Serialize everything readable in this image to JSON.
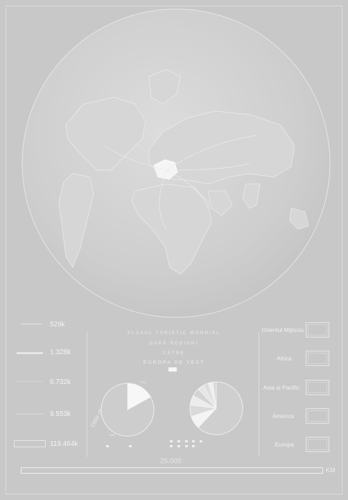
{
  "title": {
    "line1": "FLUXUL TURISTIC MONDIAL",
    "line2": "DUPĂ REGIUNI",
    "line3": "CĂTRE",
    "line4": "EUROPA DE VEST"
  },
  "left_values": [
    {
      "label": "529k"
    },
    {
      "label": "1.328k"
    },
    {
      "label": "6.732k"
    },
    {
      "label": "9.553k"
    },
    {
      "label": "119.464k"
    }
  ],
  "right_regions": [
    {
      "label": "Orientul Mijlociu"
    },
    {
      "label": "Africa"
    },
    {
      "label": "Asia și Pacific"
    },
    {
      "label": "America"
    },
    {
      "label": "Europa"
    }
  ],
  "side_label": "cele din șase",
  "scale": {
    "value": "25.000",
    "unit": "KM"
  },
  "colors": {
    "background": "#c8c8c8",
    "line": "#f2f2f2",
    "globe": "#cfcfcf"
  },
  "chart_data": [
    {
      "type": "pie",
      "values": [
        83,
        17
      ],
      "labels": [
        "83%",
        "17%"
      ]
    },
    {
      "type": "pie",
      "values": [
        62,
        8,
        7,
        6,
        5,
        4,
        3,
        3,
        2
      ]
    }
  ]
}
